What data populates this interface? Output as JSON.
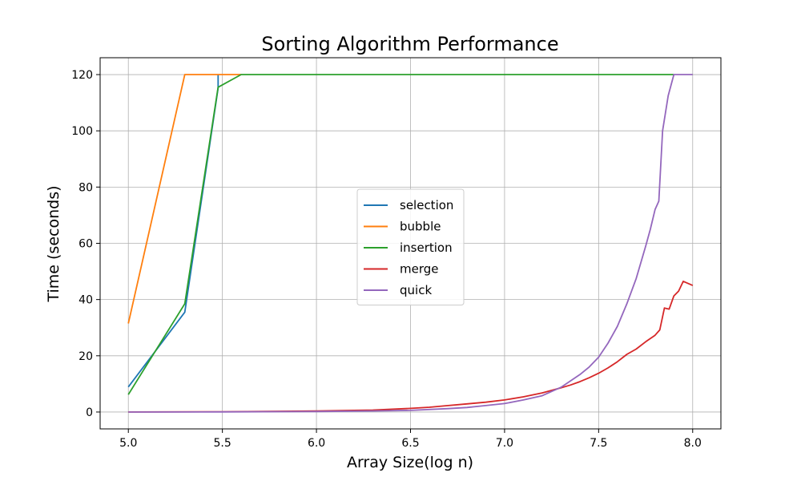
{
  "chart_data": {
    "type": "line",
    "title": "Sorting Algorithm Performance",
    "xlabel": "Array Size(log n)",
    "ylabel": "Time (seconds)",
    "xlim": [
      4.85,
      8.15
    ],
    "ylim": [
      -6,
      126
    ],
    "xticks": [
      5.0,
      5.5,
      6.0,
      6.5,
      7.0,
      7.5,
      8.0
    ],
    "xtick_labels": [
      "5.0",
      "5.5",
      "6.0",
      "6.5",
      "7.0",
      "7.5",
      "8.0"
    ],
    "yticks": [
      0,
      20,
      40,
      60,
      80,
      100,
      120
    ],
    "ytick_labels": [
      "0",
      "20",
      "40",
      "60",
      "80",
      "100",
      "120"
    ],
    "grid": true,
    "legend_position": "center",
    "series": [
      {
        "name": "selection",
        "color": "#1f77b4",
        "points": [
          [
            5.0,
            8.9
          ],
          [
            5.3,
            35.5
          ],
          [
            5.477,
            115.2
          ],
          [
            5.477,
            120
          ]
        ]
      },
      {
        "name": "bubble",
        "color": "#ff7f0e",
        "points": [
          [
            5.0,
            31.5
          ],
          [
            5.3,
            120
          ],
          [
            5.477,
            120
          ],
          [
            5.6,
            120
          ]
        ]
      },
      {
        "name": "insertion",
        "color": "#2ca02c",
        "points": [
          [
            5.0,
            6.2
          ],
          [
            5.3,
            38.5
          ],
          [
            5.477,
            115.5
          ],
          [
            5.6,
            120
          ],
          [
            5.8,
            120
          ],
          [
            6.0,
            120
          ],
          [
            6.5,
            120
          ],
          [
            7.0,
            120
          ],
          [
            7.5,
            120
          ],
          [
            7.9,
            120
          ]
        ]
      },
      {
        "name": "merge",
        "color": "#d62728",
        "points": [
          [
            5.0,
            0.01
          ],
          [
            5.5,
            0.1
          ],
          [
            6.0,
            0.35
          ],
          [
            6.3,
            0.7
          ],
          [
            6.5,
            1.3
          ],
          [
            6.6,
            1.7
          ],
          [
            6.7,
            2.3
          ],
          [
            6.8,
            2.9
          ],
          [
            6.9,
            3.5
          ],
          [
            7.0,
            4.3
          ],
          [
            7.1,
            5.4
          ],
          [
            7.2,
            6.8
          ],
          [
            7.3,
            8.6
          ],
          [
            7.35,
            9.6
          ],
          [
            7.4,
            10.8
          ],
          [
            7.45,
            12.2
          ],
          [
            7.5,
            13.8
          ],
          [
            7.55,
            15.7
          ],
          [
            7.6,
            17.9
          ],
          [
            7.65,
            20.5
          ],
          [
            7.7,
            22.4
          ],
          [
            7.75,
            25.0
          ],
          [
            7.8,
            27.3
          ],
          [
            7.825,
            29.2
          ],
          [
            7.85,
            37.0
          ],
          [
            7.875,
            36.6
          ],
          [
            7.9,
            41.3
          ],
          [
            7.925,
            43.0
          ],
          [
            7.95,
            46.5
          ],
          [
            8.0,
            45.0
          ]
        ]
      },
      {
        "name": "quick",
        "color": "#9467bd",
        "points": [
          [
            5.0,
            0.0
          ],
          [
            5.5,
            0.05
          ],
          [
            6.0,
            0.2
          ],
          [
            6.3,
            0.4
          ],
          [
            6.5,
            0.6
          ],
          [
            6.7,
            1.2
          ],
          [
            6.8,
            1.6
          ],
          [
            6.9,
            2.3
          ],
          [
            7.0,
            3.0
          ],
          [
            7.1,
            4.3
          ],
          [
            7.2,
            5.8
          ],
          [
            7.3,
            8.8
          ],
          [
            7.4,
            13.3
          ],
          [
            7.45,
            16.0
          ],
          [
            7.5,
            19.5
          ],
          [
            7.55,
            24.5
          ],
          [
            7.6,
            30.5
          ],
          [
            7.65,
            38.5
          ],
          [
            7.7,
            47.5
          ],
          [
            7.75,
            59.0
          ],
          [
            7.775,
            65.0
          ],
          [
            7.8,
            72.0
          ],
          [
            7.82,
            75.0
          ],
          [
            7.84,
            100.0
          ],
          [
            7.87,
            112.5
          ],
          [
            7.9,
            120
          ],
          [
            8.0,
            120
          ]
        ]
      }
    ]
  }
}
